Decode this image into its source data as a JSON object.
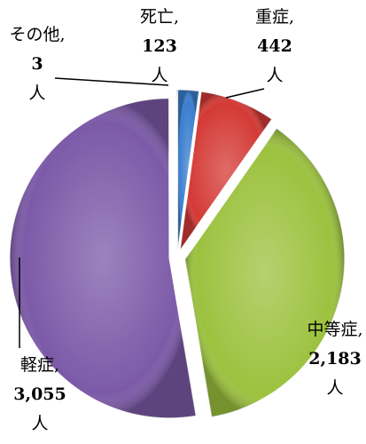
{
  "chart_data": {
    "type": "pie",
    "categories": [
      "死亡,",
      "重症,",
      "中等症,",
      "軽症,",
      "その他,"
    ],
    "values": [
      123,
      442,
      2183,
      3055,
      3
    ],
    "value_labels": [
      "123",
      "442",
      "2,183",
      "3,055",
      "3"
    ],
    "unit": "人",
    "colors": [
      "#3b7fd0",
      "#d43a36",
      "#9cc23f",
      "#7c5aa8",
      "#4a7bc4"
    ]
  }
}
